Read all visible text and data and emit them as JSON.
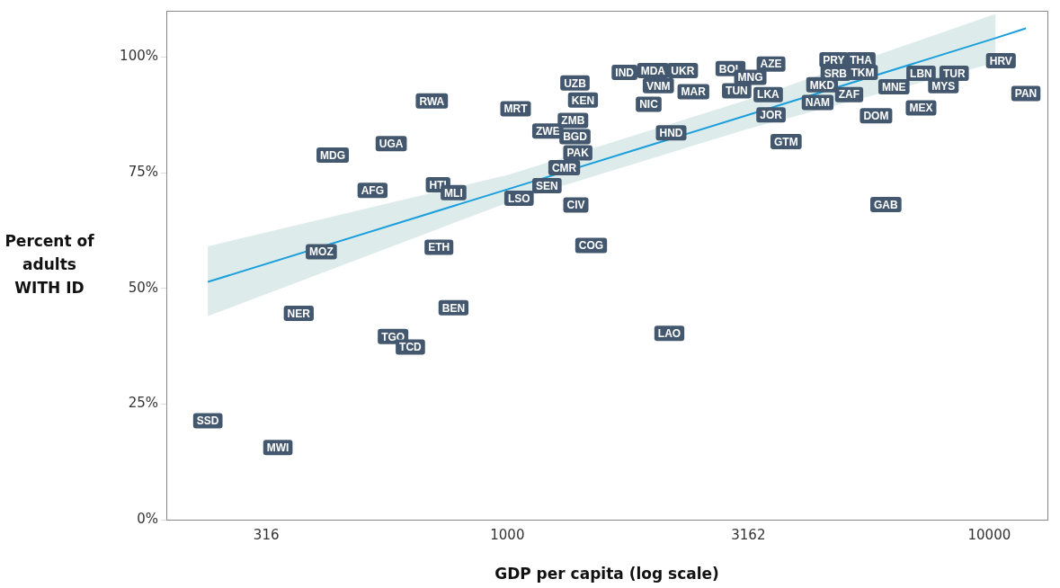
{
  "chart_data": {
    "type": "scatter",
    "xlabel": "GDP per capita (log scale)",
    "ylabel": "Percent of adults WITH ID",
    "log": "x",
    "xlim": [
      196,
      13200
    ],
    "ylim": [
      0,
      110
    ],
    "xticks": [
      316,
      1000,
      3162,
      10000
    ],
    "yticks": [
      {
        "value": 0,
        "label": "0%"
      },
      {
        "value": 25,
        "label": "25%"
      },
      {
        "value": 50,
        "label": "50%"
      },
      {
        "value": 75,
        "label": "75%"
      },
      {
        "value": 100,
        "label": "100%"
      }
    ],
    "grid": false,
    "legend": false,
    "series": [
      {
        "type": "line",
        "color": "#1a9fdc",
        "x": [
          239,
          1000,
          3162,
          10300,
          11910
        ],
        "values": [
          51.4,
          71.4,
          87.5,
          104.1,
          106.2
        ],
        "lower": [
          44.0,
          68.5,
          84.5,
          98.8,
          null
        ],
        "upper": [
          59.1,
          74.5,
          90.8,
          109.3,
          null
        ]
      },
      {
        "type": "scatter",
        "color": "#43586e",
        "marker": "square",
        "x": [
          239,
          334,
          369,
          411,
          434,
          525,
          574,
          579,
          629,
          718,
          721,
          697,
          773,
          773,
          1057,
          1208,
          1040,
          1213,
          1312,
          1387,
          1492,
          1400,
          1381,
          1368,
          1435,
          1381,
          2168,
          2187,
          1964,
          2057,
          2311,
          1750,
          2005,
          2904,
          2432,
          2991,
          3192,
          3524,
          3477,
          3524,
          3787,
          4403,
          4498,
          5118,
          5821,
          6101,
          5414,
          5458,
          4758,
          4797,
          6340,
          7217,
          8453,
          8030,
          7217,
          10570,
          11910
        ],
        "values": [
          21.4,
          15.6,
          44.6,
          57.9,
          78.8,
          71.2,
          81.3,
          39.6,
          37.3,
          72.4,
          58.9,
          90.5,
          70.7,
          45.8,
          69.5,
          72.2,
          88.8,
          84.0,
          76.1,
          68.0,
          59.3,
          79.3,
          82.8,
          86.3,
          90.7,
          94.4,
          40.3,
          83.6,
          89.8,
          93.8,
          97.1,
          96.7,
          97.1,
          97.5,
          92.5,
          92.7,
          95.6,
          98.5,
          91.9,
          87.5,
          81.7,
          90.2,
          94.0,
          91.9,
          87.3,
          68.1,
          99.4,
          96.7,
          99.4,
          96.5,
          93.6,
          96.5,
          96.5,
          93.8,
          89.0,
          99.2,
          92.1
        ],
        "value_labels": [
          "SSD",
          "MWI",
          "NER",
          "MOZ",
          "MDG",
          "AFG",
          "UGA",
          "TGO",
          "TCD",
          "HTI",
          "ETH",
          "RWA",
          "MLI",
          "BEN",
          "LSO",
          "SEN",
          "MRT",
          "ZWE",
          "CMR",
          "CIV",
          "COG",
          "PAK",
          "BGD",
          "ZMB",
          "KEN",
          "UZB",
          "LAO",
          "HND",
          "NIC",
          "VNM",
          "UKR",
          "IND",
          "MDA",
          "BOL",
          "MAR",
          "TUN",
          "MNG",
          "AZE",
          "LKA",
          "JOR",
          "GTM",
          "NAM",
          "MKD",
          "ZAF",
          "DOM",
          "GAB",
          "THA",
          "TKM",
          "PRY",
          "SRB",
          "MNE",
          "LBN",
          "TUR",
          "MYS",
          "MEX",
          "HRV",
          "PAN"
        ]
      }
    ]
  }
}
